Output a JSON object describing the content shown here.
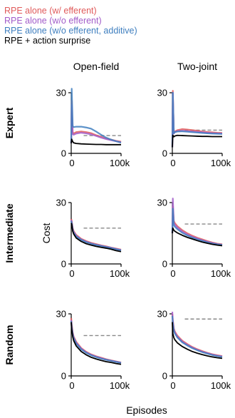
{
  "chart_data": {
    "type": "line",
    "grid": false,
    "legend_placement": "top-left",
    "legend": [
      {
        "name": "RPE alone (w/ efferent)",
        "color": "#e05a5a"
      },
      {
        "name": "RPE alone (w/o efferent)",
        "color": "#a25cc9"
      },
      {
        "name": "RPE alone (w/o efferent, additive)",
        "color": "#3f7fbf"
      },
      {
        "name": "RPE + action surprise",
        "color": "#000000"
      }
    ],
    "column_titles": [
      "Open-field",
      "Two-joint"
    ],
    "row_titles": [
      "Expert",
      "Intermediate",
      "Random"
    ],
    "ylabel": "Cost",
    "xlabel": "Episodes",
    "baseline_color": "#888888",
    "xlim": [
      0,
      100000
    ],
    "ylim": [
      0,
      30
    ],
    "xticks": [
      {
        "value": 0,
        "label": "0"
      },
      {
        "value": 100000,
        "label": "100k"
      }
    ],
    "yticks": [
      {
        "value": 0,
        "label": "0"
      },
      {
        "value": 30,
        "label": "30"
      }
    ],
    "panels": [
      {
        "row": "Expert",
        "col": "Open-field",
        "baseline": 8.8,
        "series": [
          {
            "name": "RPE alone (w/ efferent)",
            "x": [
              0,
              1000,
              3000,
              5000,
              10000,
              20000,
              30000,
              40000,
              50000,
              60000,
              70000,
              80000,
              90000,
              100000
            ],
            "y": [
              5.0,
              26.0,
              10.5,
              9.8,
              10.5,
              10.8,
              10.5,
              10.0,
              9.0,
              8.2,
              7.4,
              6.8,
              6.2,
              5.8
            ]
          },
          {
            "name": "RPE alone (w/o efferent)",
            "x": [
              0,
              1000,
              3000,
              5000,
              10000,
              20000,
              30000,
              40000,
              50000,
              60000,
              70000,
              80000,
              90000,
              100000
            ],
            "y": [
              5.0,
              24.0,
              9.5,
              9.2,
              9.8,
              10.2,
              9.9,
              9.4,
              8.6,
              7.8,
              7.1,
              6.5,
              6.0,
              5.5
            ]
          },
          {
            "name": "RPE alone (w/o efferent, additive)",
            "x": [
              0,
              1000,
              3000,
              5000,
              10000,
              20000,
              30000,
              40000,
              50000,
              60000,
              70000,
              80000,
              90000,
              100000
            ],
            "y": [
              5.0,
              32.0,
              13.5,
              13.0,
              13.2,
              13.2,
              12.8,
              12.2,
              10.8,
              9.2,
              7.8,
              6.8,
              6.0,
              5.3
            ]
          },
          {
            "name": "RPE + action surprise",
            "x": [
              0,
              1000,
              3000,
              5000,
              10000,
              20000,
              30000,
              40000,
              50000,
              60000,
              70000,
              80000,
              90000,
              100000
            ],
            "y": [
              5.0,
              7.0,
              5.8,
              5.2,
              4.9,
              4.7,
              4.6,
              4.5,
              4.4,
              4.4,
              4.3,
              4.3,
              4.3,
              4.3
            ]
          }
        ]
      },
      {
        "row": "Expert",
        "col": "Two-joint",
        "baseline": 11.5,
        "series": [
          {
            "name": "RPE alone (w/ efferent)",
            "x": [
              0,
              1000,
              3000,
              5000,
              10000,
              20000,
              30000,
              40000,
              50000,
              60000,
              70000,
              80000,
              90000,
              100000
            ],
            "y": [
              3.0,
              31.0,
              10.0,
              10.8,
              11.5,
              12.0,
              11.8,
              11.5,
              11.2,
              10.8,
              10.6,
              10.4,
              10.2,
              10.1
            ]
          },
          {
            "name": "RPE alone (w/o efferent)",
            "x": [
              0,
              1000,
              3000,
              5000,
              10000,
              20000,
              30000,
              40000,
              50000,
              60000,
              70000,
              80000,
              90000,
              100000
            ],
            "y": [
              3.0,
              30.0,
              9.8,
              10.5,
              11.0,
              11.2,
              11.0,
              10.8,
              10.6,
              10.4,
              10.2,
              10.0,
              9.9,
              9.8
            ]
          },
          {
            "name": "RPE alone (w/o efferent, additive)",
            "x": [
              0,
              1000,
              3000,
              5000,
              10000,
              20000,
              30000,
              40000,
              50000,
              60000,
              70000,
              80000,
              90000,
              100000
            ],
            "y": [
              3.0,
              30.0,
              10.0,
              10.5,
              10.8,
              10.9,
              10.7,
              10.5,
              10.3,
              10.1,
              9.9,
              9.8,
              9.7,
              9.6
            ]
          },
          {
            "name": "RPE + action surprise",
            "x": [
              0,
              1000,
              3000,
              5000,
              10000,
              20000,
              30000,
              40000,
              50000,
              60000,
              70000,
              80000,
              90000,
              100000
            ],
            "y": [
              3.0,
              9.0,
              8.2,
              8.6,
              8.9,
              8.8,
              8.7,
              8.6,
              8.5,
              8.4,
              8.4,
              8.3,
              8.3,
              8.3
            ]
          }
        ]
      },
      {
        "row": "Intermediate",
        "col": "Open-field",
        "baseline": 17.5,
        "series": [
          {
            "name": "RPE alone (w/ efferent)",
            "x": [
              0,
              1000,
              3000,
              5000,
              10000,
              20000,
              30000,
              40000,
              50000,
              60000,
              70000,
              80000,
              90000,
              100000
            ],
            "y": [
              22.0,
              21.0,
              17.5,
              16.0,
              14.2,
              12.3,
              11.2,
              10.3,
              9.7,
              9.1,
              8.6,
              8.0,
              7.5,
              7.0
            ]
          },
          {
            "name": "RPE alone (w/o efferent)",
            "x": [
              0,
              1000,
              3000,
              5000,
              10000,
              20000,
              30000,
              40000,
              50000,
              60000,
              70000,
              80000,
              90000,
              100000
            ],
            "y": [
              21.5,
              20.5,
              17.0,
              15.6,
              13.8,
              12.0,
              10.9,
              10.0,
              9.4,
              8.9,
              8.4,
              7.9,
              7.3,
              6.8
            ]
          },
          {
            "name": "RPE alone (w/o efferent, additive)",
            "x": [
              0,
              1000,
              3000,
              5000,
              10000,
              20000,
              30000,
              40000,
              50000,
              60000,
              70000,
              80000,
              90000,
              100000
            ],
            "y": [
              21.0,
              20.0,
              16.6,
              15.2,
              13.5,
              11.8,
              10.7,
              9.9,
              9.3,
              8.8,
              8.3,
              7.8,
              7.2,
              6.7
            ]
          },
          {
            "name": "RPE + action surprise",
            "x": [
              0,
              1000,
              3000,
              5000,
              10000,
              20000,
              30000,
              40000,
              50000,
              60000,
              70000,
              80000,
              90000,
              100000
            ],
            "y": [
              20.0,
              19.5,
              16.0,
              14.6,
              12.7,
              11.0,
              9.9,
              9.2,
              8.6,
              8.1,
              7.7,
              7.2,
              6.5,
              6.0
            ]
          }
        ]
      },
      {
        "row": "Intermediate",
        "col": "Two-joint",
        "baseline": 19.5,
        "series": [
          {
            "name": "RPE alone (w/ efferent)",
            "x": [
              0,
              1000,
              3000,
              5000,
              10000,
              20000,
              30000,
              40000,
              50000,
              60000,
              70000,
              80000,
              90000,
              100000
            ],
            "y": [
              15.0,
              28.0,
              21.0,
              20.0,
              18.5,
              16.5,
              15.0,
              13.8,
              12.8,
              12.0,
              11.2,
              10.5,
              9.9,
              9.6
            ]
          },
          {
            "name": "RPE alone (w/o efferent)",
            "x": [
              0,
              1000,
              3000,
              5000,
              10000,
              20000,
              30000,
              40000,
              50000,
              60000,
              70000,
              80000,
              90000,
              100000
            ],
            "y": [
              15.0,
              32.0,
              20.0,
              19.2,
              17.8,
              15.8,
              14.4,
              13.3,
              12.4,
              11.6,
              10.9,
              10.2,
              9.7,
              9.4
            ]
          },
          {
            "name": "RPE alone (w/o efferent, additive)",
            "x": [
              0,
              1000,
              3000,
              5000,
              10000,
              20000,
              30000,
              40000,
              50000,
              60000,
              70000,
              80000,
              90000,
              100000
            ],
            "y": [
              15.0,
              27.0,
              19.0,
              18.2,
              17.0,
              15.2,
              13.9,
              12.9,
              12.0,
              11.3,
              10.6,
              10.0,
              9.6,
              9.3
            ]
          },
          {
            "name": "RPE + action surprise",
            "x": [
              0,
              1000,
              3000,
              5000,
              10000,
              20000,
              30000,
              40000,
              50000,
              60000,
              70000,
              80000,
              90000,
              100000
            ],
            "y": [
              15.0,
              17.5,
              16.5,
              16.0,
              15.2,
              14.0,
              13.0,
              12.2,
              11.4,
              10.7,
              10.1,
              9.6,
              9.2,
              8.9
            ]
          }
        ]
      },
      {
        "row": "Random",
        "col": "Open-field",
        "baseline": 19.5,
        "series": [
          {
            "name": "RPE alone (w/ efferent)",
            "x": [
              0,
              1000,
              3000,
              5000,
              10000,
              20000,
              30000,
              40000,
              50000,
              60000,
              70000,
              80000,
              90000,
              100000
            ],
            "y": [
              28.0,
              25.0,
              21.0,
              19.0,
              16.5,
              13.5,
              11.7,
              10.4,
              9.5,
              8.8,
              8.1,
              7.5,
              7.0,
              6.5
            ]
          },
          {
            "name": "RPE alone (w/o efferent)",
            "x": [
              0,
              1000,
              3000,
              5000,
              10000,
              20000,
              30000,
              40000,
              50000,
              60000,
              70000,
              80000,
              90000,
              100000
            ],
            "y": [
              27.0,
              24.0,
              20.5,
              18.6,
              16.0,
              13.2,
              11.4,
              10.2,
              9.3,
              8.6,
              7.9,
              7.4,
              6.9,
              6.4
            ]
          },
          {
            "name": "RPE alone (w/o efferent, additive)",
            "x": [
              0,
              1000,
              3000,
              5000,
              10000,
              20000,
              30000,
              40000,
              50000,
              60000,
              70000,
              80000,
              90000,
              100000
            ],
            "y": [
              26.5,
              23.5,
              20.0,
              18.2,
              15.7,
              12.9,
              11.2,
              10.0,
              9.1,
              8.4,
              7.8,
              7.3,
              6.8,
              6.3
            ]
          },
          {
            "name": "RPE + action surprise",
            "x": [
              0,
              1000,
              3000,
              5000,
              10000,
              20000,
              30000,
              40000,
              50000,
              60000,
              70000,
              80000,
              90000,
              100000
            ],
            "y": [
              26.0,
              22.5,
              19.0,
              17.0,
              14.5,
              11.8,
              10.2,
              9.0,
              8.2,
              7.5,
              6.9,
              6.5,
              6.0,
              5.6
            ]
          }
        ]
      },
      {
        "row": "Random",
        "col": "Two-joint",
        "baseline": 27.5,
        "series": [
          {
            "name": "RPE alone (w/ efferent)",
            "x": [
              0,
              1000,
              3000,
              5000,
              10000,
              20000,
              30000,
              40000,
              50000,
              60000,
              70000,
              80000,
              90000,
              100000
            ],
            "y": [
              30.0,
              27.0,
              23.0,
              21.5,
              19.5,
              17.0,
              15.4,
              14.0,
              12.9,
              12.0,
              11.2,
              10.5,
              10.0,
              9.6
            ]
          },
          {
            "name": "RPE alone (w/o efferent)",
            "x": [
              0,
              1000,
              3000,
              5000,
              10000,
              20000,
              30000,
              40000,
              50000,
              60000,
              70000,
              80000,
              90000,
              100000
            ],
            "y": [
              31.0,
              26.5,
              22.5,
              21.0,
              19.0,
              16.6,
              15.0,
              13.7,
              12.6,
              11.7,
              11.0,
              10.3,
              9.8,
              9.4
            ]
          },
          {
            "name": "RPE alone (w/o efferent, additive)",
            "x": [
              0,
              1000,
              3000,
              5000,
              10000,
              20000,
              30000,
              40000,
              50000,
              60000,
              70000,
              80000,
              90000,
              100000
            ],
            "y": [
              29.0,
              25.5,
              22.0,
              20.5,
              18.6,
              16.2,
              14.7,
              13.4,
              12.4,
              11.5,
              10.8,
              10.1,
              9.6,
              9.2
            ]
          },
          {
            "name": "RPE + action surprise",
            "x": [
              0,
              1000,
              3000,
              5000,
              10000,
              20000,
              30000,
              40000,
              50000,
              60000,
              70000,
              80000,
              90000,
              100000
            ],
            "y": [
              26.0,
              20.5,
              18.5,
              17.5,
              16.0,
              14.2,
              12.9,
              11.8,
              11.0,
              10.3,
              9.7,
              9.2,
              8.8,
              8.5
            ]
          }
        ]
      }
    ]
  }
}
